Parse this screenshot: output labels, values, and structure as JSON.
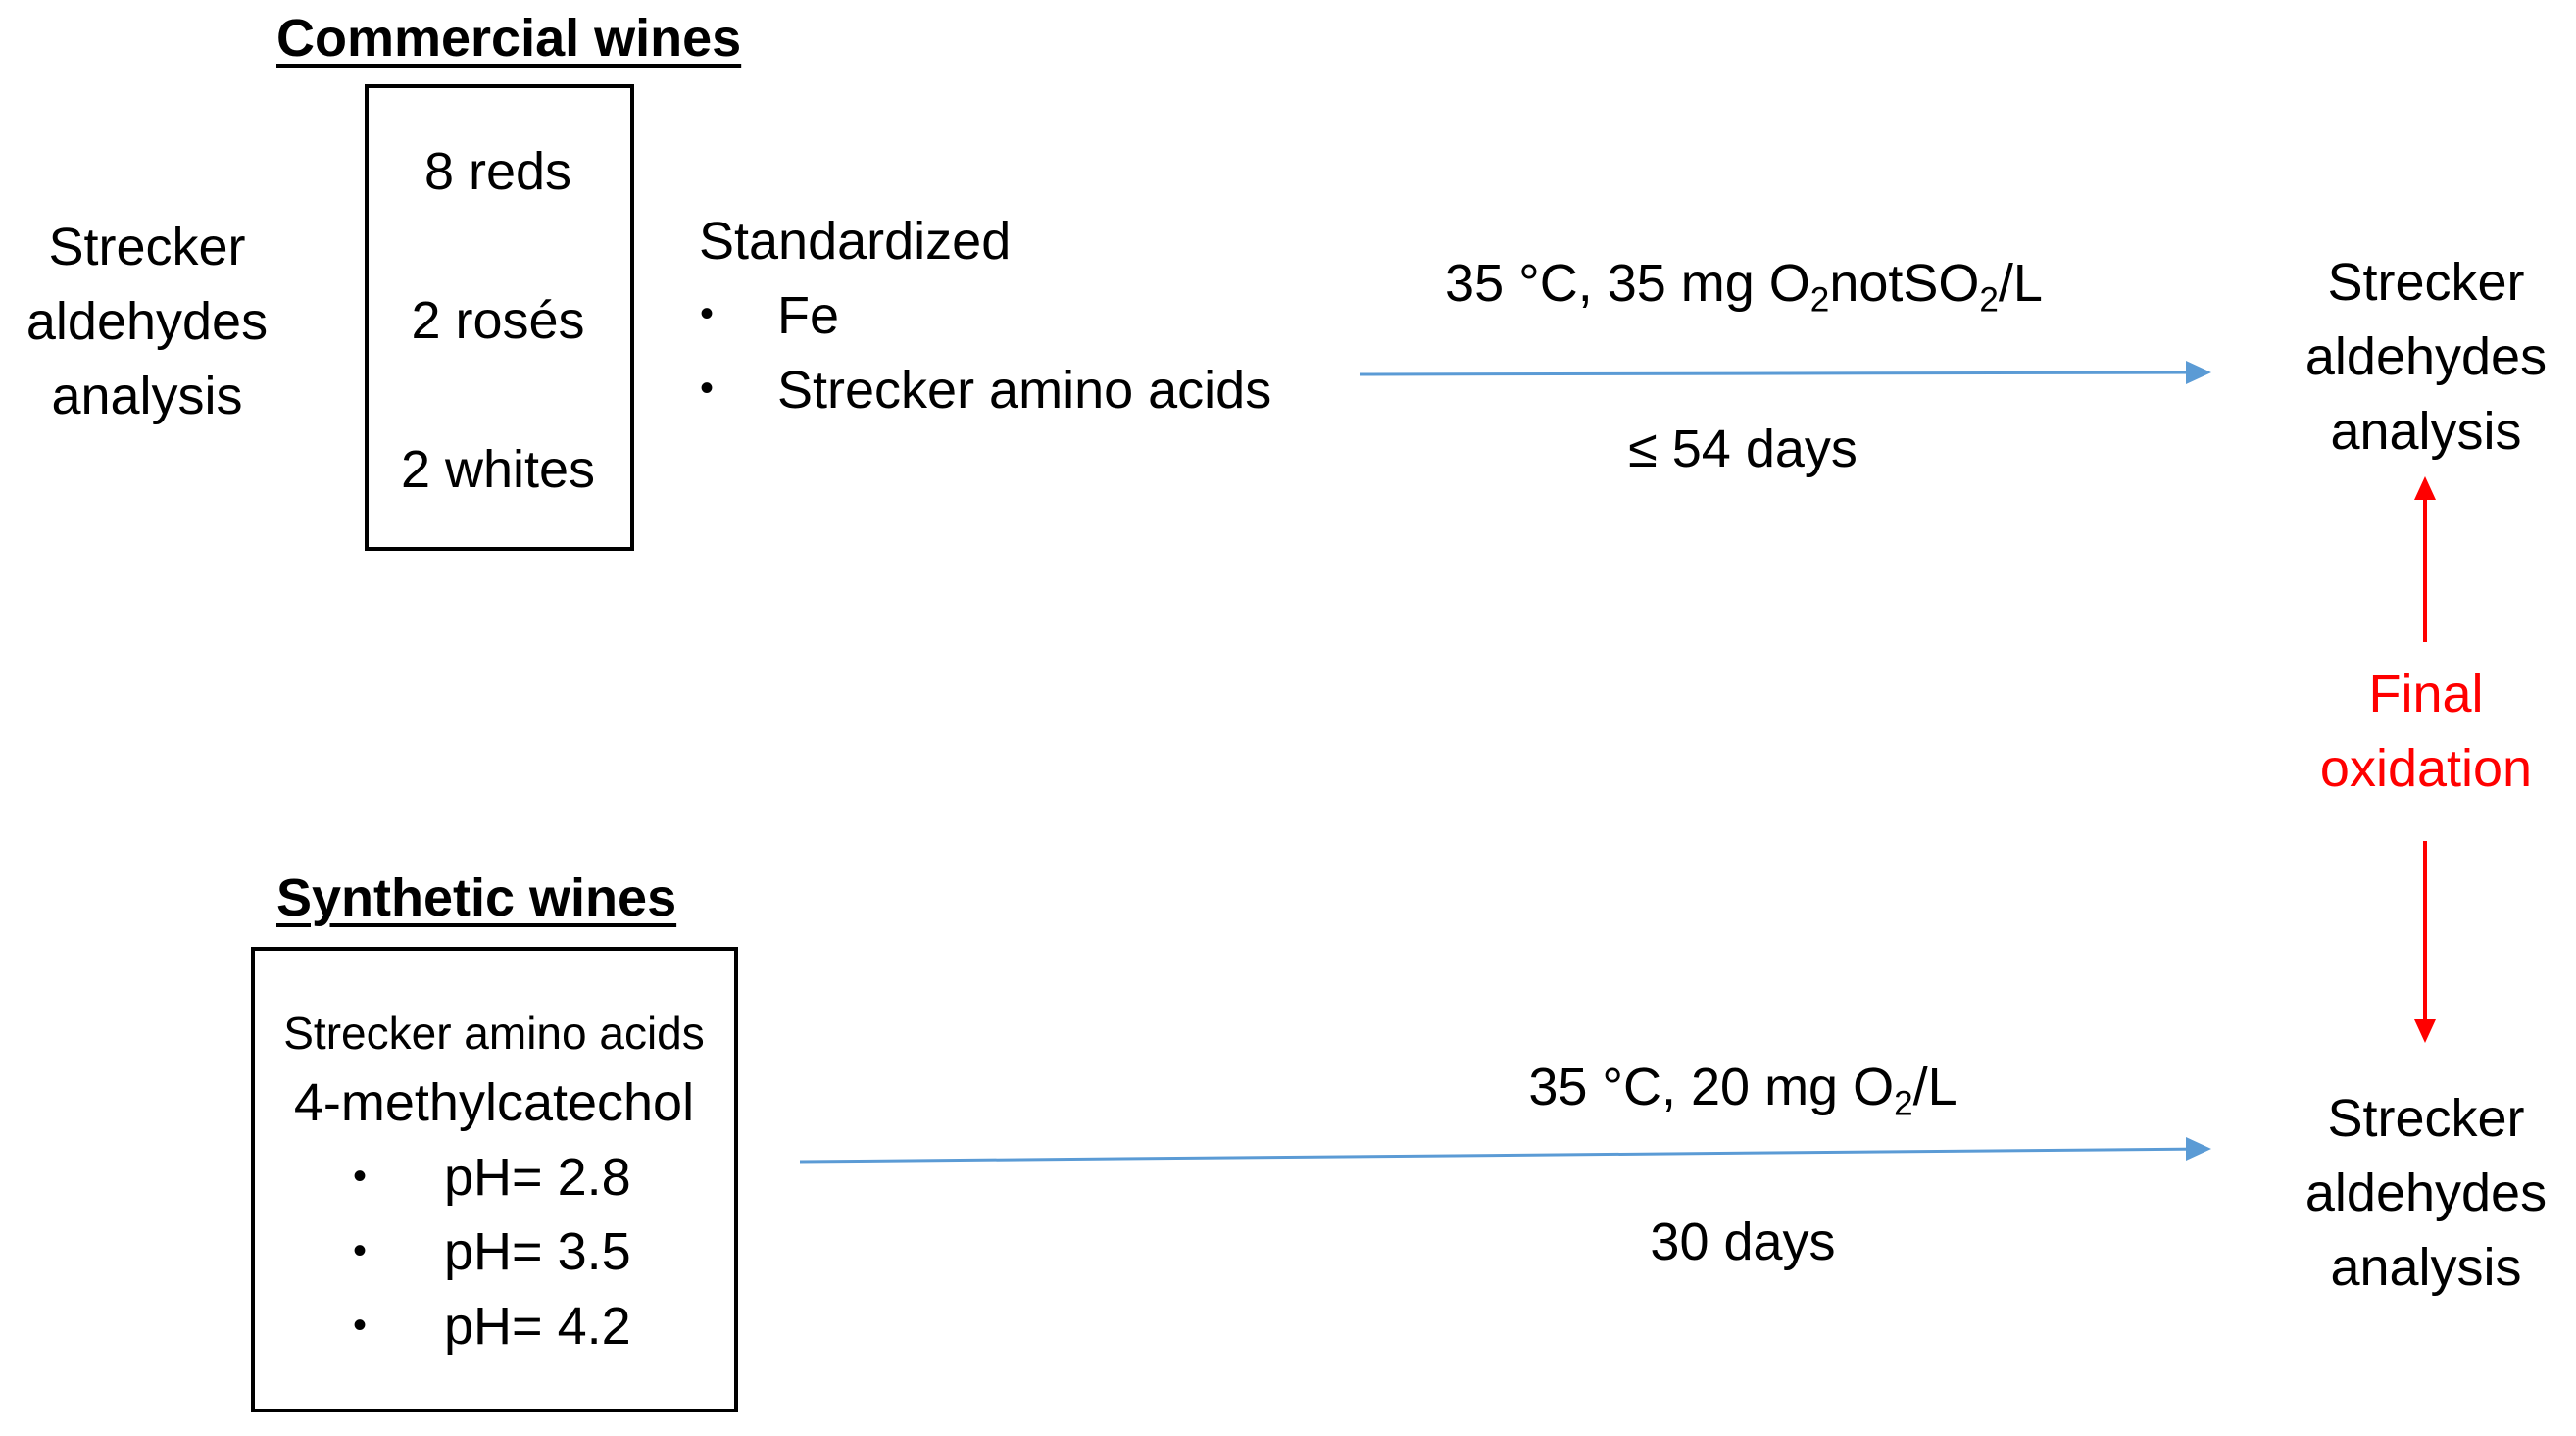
{
  "commercial": {
    "title": "Commercial wines",
    "left_label": [
      "Strecker",
      "aldehydes",
      "analysis"
    ],
    "box_items": [
      "8 reds",
      "2 rosés",
      "2 whites"
    ],
    "standardized_label": "Standardized",
    "standardized_items": [
      "Fe",
      "Strecker amino acids"
    ],
    "bullet_glyph": "•",
    "conditions": {
      "prefix": "35 °C, 35 mg O",
      "sub1": "2",
      "middle": "notSO",
      "sub2": "2",
      "suffix": "/L"
    },
    "duration": "≤ 54 days",
    "result": [
      "Strecker",
      "aldehydes",
      "analysis"
    ]
  },
  "final_oxidation": [
    "Final",
    "oxidation"
  ],
  "synthetic": {
    "title": "Synthetic wines",
    "box_line1": "Strecker amino acids",
    "box_line2": "4-methylcatechol",
    "ph_items": [
      "pH= 2.8",
      "pH= 3.5",
      "pH= 4.2"
    ],
    "conditions": {
      "prefix": "35 °C, 20 mg O",
      "sub": "2",
      "suffix": "/L"
    },
    "duration": "30 days",
    "result": [
      "Strecker",
      "aldehydes",
      "analysis"
    ]
  },
  "colors": {
    "arrow_blue": "#5b9bd5",
    "arrow_red": "#ff0000",
    "text": "#000000"
  }
}
